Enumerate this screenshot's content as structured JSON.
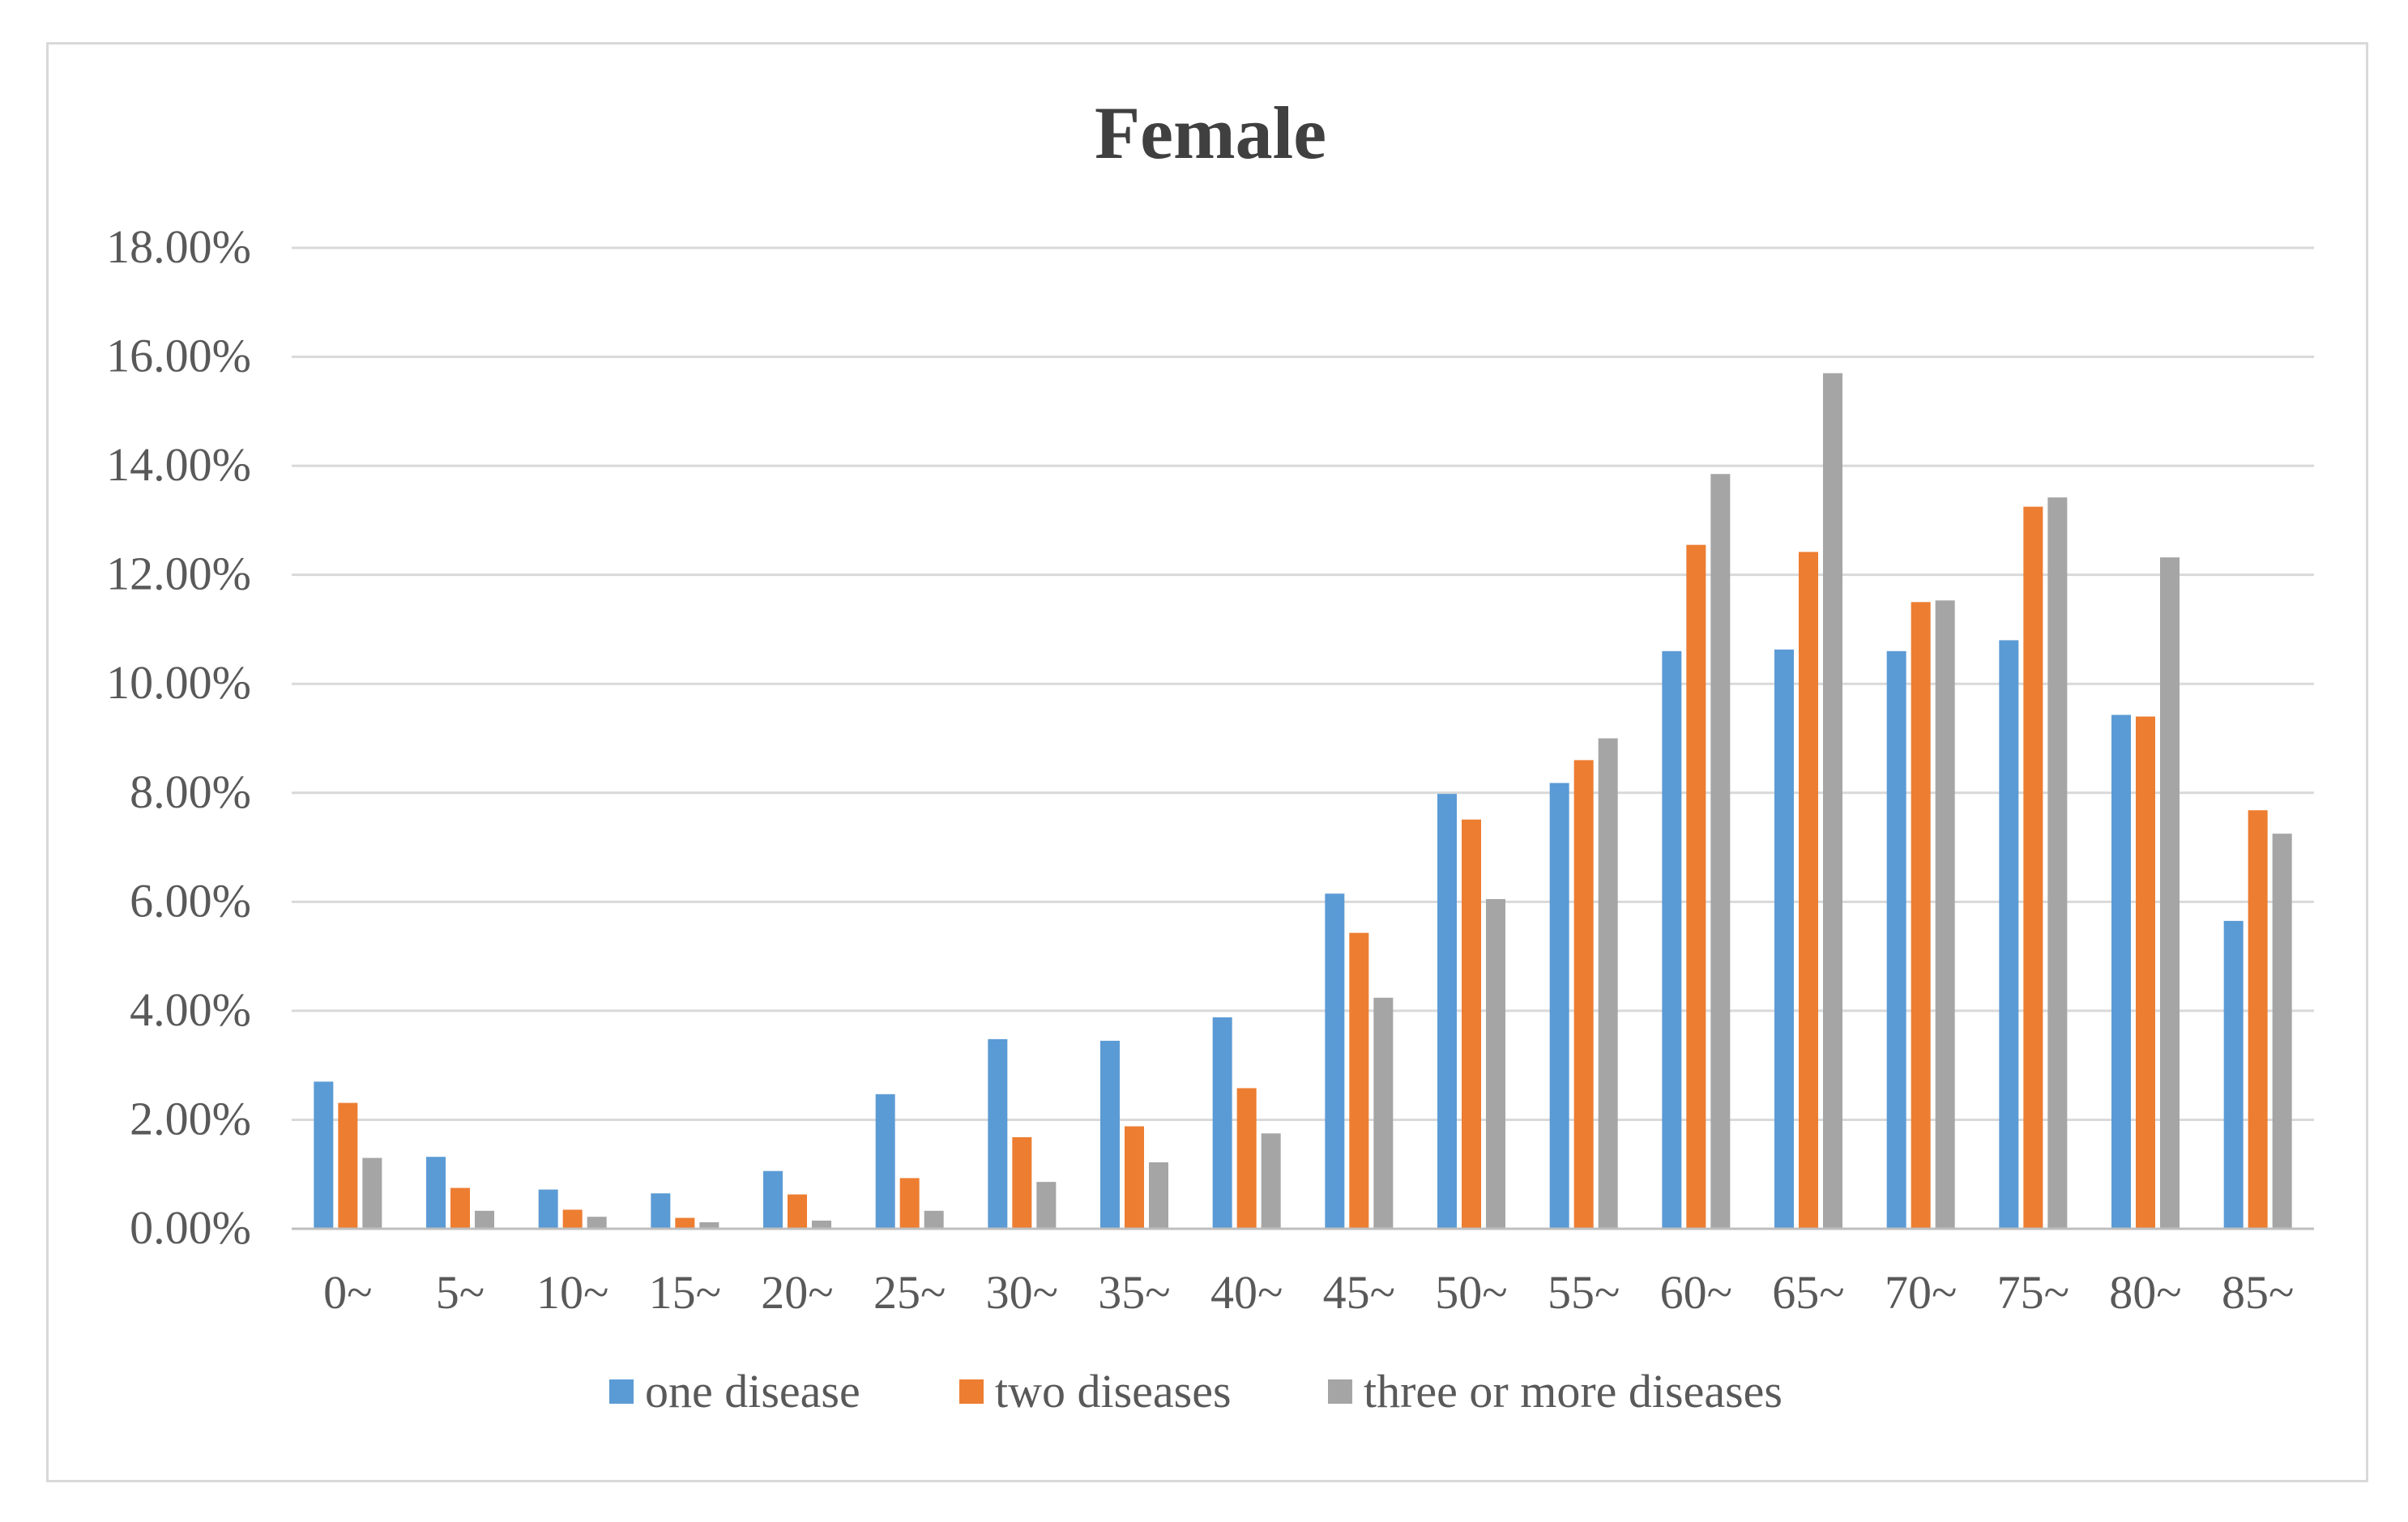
{
  "chart_data": {
    "type": "bar",
    "title": "Female",
    "xlabel": "",
    "ylabel": "",
    "ylim": [
      0,
      18
    ],
    "ytick_step": 2,
    "ytick_format": "percent_2dp",
    "grid": true,
    "legend_position": "bottom",
    "categories": [
      "0~",
      "5~",
      "10~",
      "15~",
      "20~",
      "25~",
      "30~",
      "35~",
      "40~",
      "45~",
      "50~",
      "55~",
      "60~",
      "65~",
      "70~",
      "75~",
      "80~",
      "85~"
    ],
    "series": [
      {
        "name": "one disease",
        "color": "#5b9bd5",
        "values": [
          2.7,
          1.32,
          0.72,
          0.65,
          1.06,
          2.47,
          3.48,
          3.45,
          3.88,
          6.15,
          7.98,
          8.18,
          10.6,
          10.63,
          10.6,
          10.8,
          9.43,
          5.65
        ]
      },
      {
        "name": "two diseases",
        "color": "#ed7d31",
        "values": [
          2.31,
          0.75,
          0.35,
          0.2,
          0.63,
          0.93,
          1.68,
          1.88,
          2.58,
          5.43,
          7.51,
          8.6,
          12.55,
          12.42,
          11.5,
          13.25,
          9.4,
          7.68
        ]
      },
      {
        "name": "three or more diseases",
        "color": "#a5a5a5",
        "values": [
          1.3,
          0.33,
          0.22,
          0.12,
          0.15,
          0.33,
          0.86,
          1.22,
          1.75,
          4.24,
          6.05,
          9.0,
          13.85,
          15.7,
          11.53,
          13.42,
          12.32,
          7.25
        ]
      }
    ],
    "grid_color": "#d9d9d9",
    "axis_color": "#bfbfbf"
  }
}
